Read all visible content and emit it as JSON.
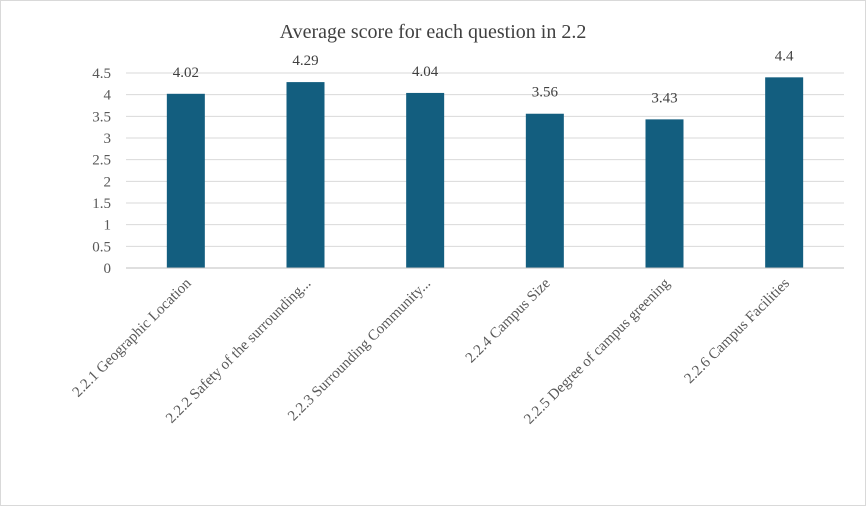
{
  "chart_data": {
    "type": "bar",
    "title": "Average score for each question in 2.2",
    "categories": [
      "2.2.1 Geographic Location",
      "2.2.2 Safety of the surrounding...",
      "2.2.3 Surrounding Community...",
      "2.2.4 Campus Size",
      "2.2.5 Degree of campus greening",
      "2.2.6 Campus Facilities"
    ],
    "values": [
      4.02,
      4.29,
      4.04,
      3.56,
      3.43,
      4.4
    ],
    "data_labels": [
      "4.02",
      "4.29",
      "4.04",
      "3.56",
      "3.43",
      "4.4"
    ],
    "y_ticks": [
      "0",
      "0.5",
      "1",
      "1.5",
      "2",
      "2.5",
      "3",
      "3.5",
      "4",
      "4.5"
    ],
    "ylim": [
      0,
      4.5
    ],
    "grid": true,
    "legend": "none",
    "bar_color": "#135e7f"
  }
}
